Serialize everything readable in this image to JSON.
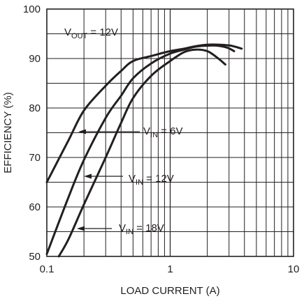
{
  "chart_data": {
    "type": "line",
    "title": "",
    "xlabel": "LOAD CURRENT (A)",
    "ylabel": "EFFICIENCY (%)",
    "x_scale": "log",
    "xlim": [
      0.1,
      10
    ],
    "ylim": [
      50,
      100
    ],
    "grid": true,
    "x_ticks": [
      "0.1",
      "1",
      "10"
    ],
    "y_ticks": [
      "50",
      "60",
      "70",
      "80",
      "90",
      "100"
    ],
    "annotation": {
      "base": "V",
      "sub": "OUT",
      "rest": " = 12V"
    },
    "series": [
      {
        "name": "VIN = 6V",
        "label": {
          "base": "V",
          "sub": "IN",
          "rest": " = 6V"
        },
        "x": [
          0.1,
          0.15,
          0.2,
          0.3,
          0.4,
          0.5,
          0.7,
          1.0,
          1.3,
          1.6,
          2.0,
          2.5,
          3.1,
          3.8
        ],
        "y": [
          65,
          73.5,
          79.5,
          84.5,
          87.5,
          89.5,
          90.5,
          91.5,
          92.0,
          92.5,
          92.8,
          92.8,
          92.6,
          92.0
        ]
      },
      {
        "name": "VIN = 12V",
        "label": {
          "base": "V",
          "sub": "IN",
          "rest": " = 12V"
        },
        "x": [
          0.1,
          0.15,
          0.2,
          0.3,
          0.4,
          0.5,
          0.7,
          1.0,
          1.3,
          1.6,
          2.0,
          2.4,
          2.9,
          3.3
        ],
        "y": [
          50.5,
          62,
          69.5,
          78,
          82.5,
          86,
          89,
          91,
          91.8,
          92.4,
          92.6,
          92.6,
          92.2,
          91.5
        ]
      },
      {
        "name": "VIN = 18V",
        "label": {
          "base": "V",
          "sub": "IN",
          "rest": " = 18V"
        },
        "x": [
          0.125,
          0.15,
          0.2,
          0.3,
          0.4,
          0.5,
          0.7,
          1.0,
          1.3,
          1.6,
          2.0,
          2.4,
          2.8
        ],
        "y": [
          50,
          53.5,
          60.5,
          70,
          77,
          82,
          86.5,
          89.5,
          91.3,
          91.8,
          91.5,
          90.2,
          88.8
        ]
      }
    ]
  }
}
